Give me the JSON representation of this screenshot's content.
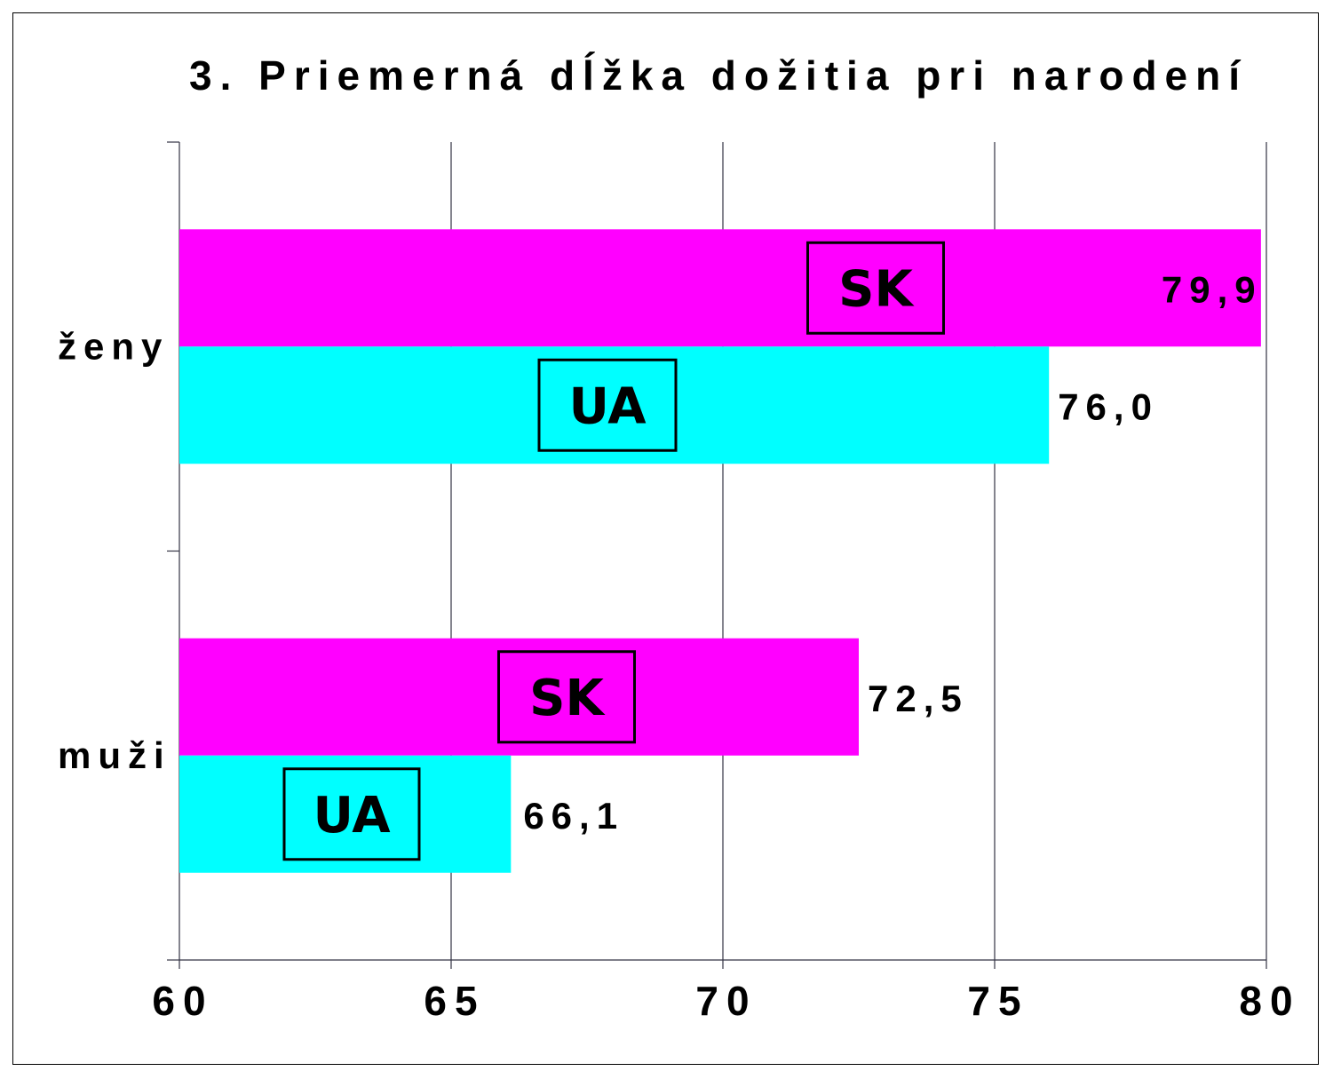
{
  "chart_data": {
    "type": "bar",
    "orientation": "horizontal",
    "title": "3. Priemerná dĺžka dožitia pri narodení",
    "categories": [
      "ženy",
      "muži"
    ],
    "series": [
      {
        "name": "SK",
        "values": [
          79.9,
          72.5
        ],
        "labels": [
          "79,9",
          "72,5"
        ],
        "color": "#ff00ff"
      },
      {
        "name": "UA",
        "values": [
          76.0,
          66.1
        ],
        "labels": [
          "76,0",
          "66,1"
        ],
        "color": "#00ffff"
      }
    ],
    "xlim": [
      60,
      80
    ],
    "xticks": [
      "60",
      "65",
      "70",
      "75",
      "80"
    ],
    "grid": true,
    "legend": "inline boxed labels inside bars"
  }
}
